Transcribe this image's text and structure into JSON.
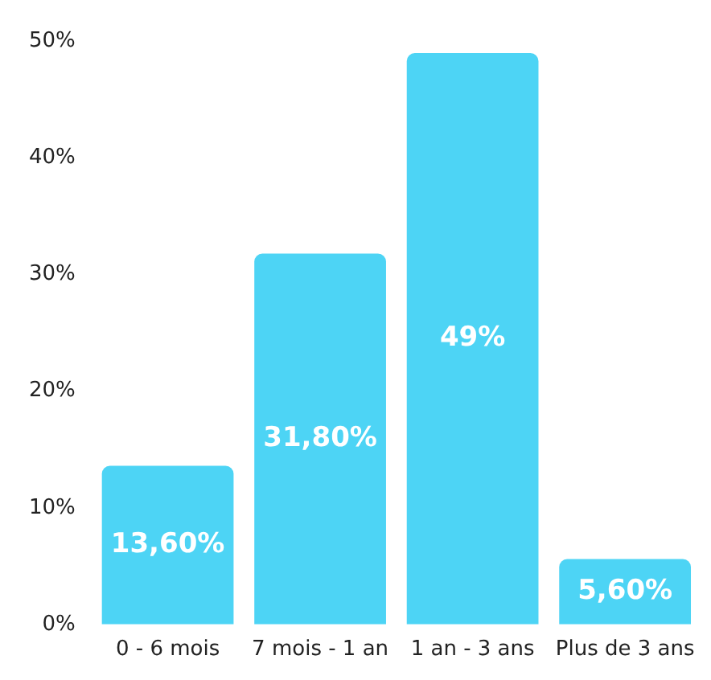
{
  "chart_data": {
    "type": "bar",
    "categories": [
      "0 - 6 mois",
      "7 mois - 1 an",
      "1 an - 3 ans",
      "Plus de 3 ans"
    ],
    "values": [
      13.6,
      31.8,
      49,
      5.6
    ],
    "value_labels": [
      "13,60%",
      "31,80%",
      "49%",
      "5,60%"
    ],
    "color": "#4dd4f5",
    "ylim": [
      0,
      50
    ],
    "yticks": [
      {
        "value": 0,
        "label": "0%"
      },
      {
        "value": 10,
        "label": "10%"
      },
      {
        "value": 20,
        "label": "20%"
      },
      {
        "value": 30,
        "label": "30%"
      },
      {
        "value": 40,
        "label": "40%"
      },
      {
        "value": 50,
        "label": "50%"
      }
    ]
  }
}
